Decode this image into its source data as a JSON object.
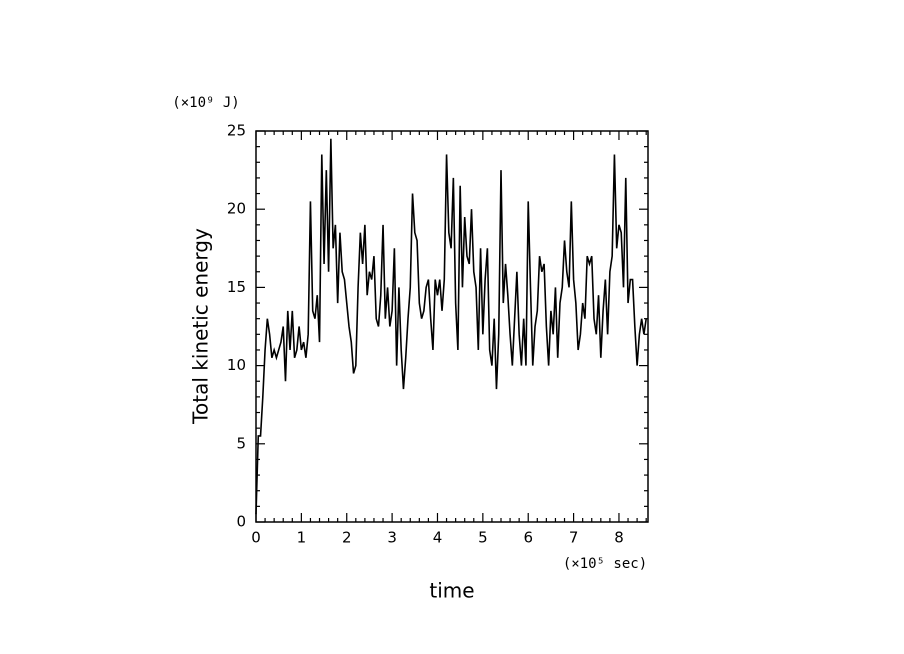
{
  "chart_data": {
    "type": "line",
    "xlabel": "time",
    "ylabel": "Total kinetic energy",
    "x_unit": "(×10⁵ sec)",
    "y_unit": "(×10⁹ J)",
    "color": "#000000",
    "xlim": [
      0,
      8.64
    ],
    "ylim": [
      0,
      25
    ],
    "xticks": [
      0,
      1,
      2,
      3,
      4,
      5,
      6,
      7,
      8
    ],
    "yticks": [
      0,
      5,
      10,
      15,
      20,
      25
    ],
    "xminorticks": [
      0.2,
      0.4,
      0.6,
      0.8,
      1.2,
      1.4,
      1.6,
      1.8,
      2.2,
      2.4,
      2.6,
      2.8,
      3.2,
      3.4,
      3.6,
      3.8,
      4.2,
      4.4,
      4.6,
      4.8,
      5.2,
      5.4,
      5.6,
      5.8,
      6.2,
      6.4,
      6.6,
      6.8,
      7.2,
      7.4,
      7.6,
      7.8,
      8.2,
      8.4,
      8.6
    ],
    "yminorticks": [
      1,
      2,
      3,
      4,
      6,
      7,
      8,
      9,
      11,
      12,
      13,
      14,
      16,
      17,
      18,
      19,
      21,
      22,
      23,
      24
    ],
    "x": [
      0,
      0.05,
      0.1,
      0.15,
      0.2,
      0.25,
      0.3,
      0.35,
      0.4,
      0.45,
      0.5,
      0.55,
      0.6,
      0.65,
      0.7,
      0.75,
      0.8,
      0.85,
      0.9,
      0.95,
      1,
      1.05,
      1.1,
      1.15,
      1.2,
      1.25,
      1.3,
      1.35,
      1.4,
      1.45,
      1.5,
      1.55,
      1.6,
      1.65,
      1.7,
      1.75,
      1.8,
      1.85,
      1.9,
      1.95,
      2,
      2.05,
      2.1,
      2.15,
      2.2,
      2.25,
      2.3,
      2.35,
      2.4,
      2.45,
      2.5,
      2.55,
      2.6,
      2.65,
      2.7,
      2.75,
      2.8,
      2.85,
      2.9,
      2.95,
      3,
      3.05,
      3.1,
      3.15,
      3.2,
      3.25,
      3.3,
      3.35,
      3.4,
      3.45,
      3.5,
      3.55,
      3.6,
      3.65,
      3.7,
      3.75,
      3.8,
      3.85,
      3.9,
      3.95,
      4,
      4.05,
      4.1,
      4.15,
      4.2,
      4.25,
      4.3,
      4.35,
      4.4,
      4.45,
      4.5,
      4.55,
      4.6,
      4.65,
      4.7,
      4.75,
      4.8,
      4.85,
      4.9,
      4.95,
      5,
      5.05,
      5.1,
      5.15,
      5.2,
      5.25,
      5.3,
      5.35,
      5.4,
      5.45,
      5.5,
      5.55,
      5.6,
      5.65,
      5.7,
      5.75,
      5.8,
      5.85,
      5.9,
      5.95,
      6,
      6.05,
      6.1,
      6.15,
      6.2,
      6.25,
      6.3,
      6.35,
      6.4,
      6.45,
      6.5,
      6.55,
      6.6,
      6.65,
      6.7,
      6.75,
      6.8,
      6.85,
      6.9,
      6.95,
      7,
      7.05,
      7.1,
      7.15,
      7.2,
      7.25,
      7.3,
      7.35,
      7.4,
      7.45,
      7.5,
      7.55,
      7.6,
      7.65,
      7.7,
      7.75,
      7.8,
      7.85,
      7.9,
      7.95,
      8,
      8.05,
      8.1,
      8.15,
      8.2,
      8.25,
      8.3,
      8.35,
      8.4,
      8.45,
      8.5,
      8.55,
      8.6
    ],
    "values": [
      0.5,
      5.5,
      5.5,
      8,
      11,
      13,
      12,
      10.5,
      11,
      10.5,
      11,
      11.5,
      12.5,
      9,
      13.5,
      11,
      13.5,
      10.5,
      11,
      12.5,
      11,
      11.5,
      10.5,
      12,
      20.5,
      13.5,
      13,
      14.5,
      11.5,
      23.5,
      16.5,
      22.5,
      16,
      24.5,
      17.5,
      19,
      14,
      18.5,
      16,
      15.5,
      14,
      12.5,
      11.5,
      9.5,
      10,
      15,
      18.5,
      16.5,
      19,
      14.5,
      16,
      15.5,
      17,
      13,
      12.5,
      14.5,
      19,
      13,
      15,
      12.5,
      13.5,
      17.5,
      10,
      15,
      11,
      8.5,
      10.5,
      13,
      15,
      21,
      18.5,
      18,
      14,
      13,
      13.5,
      15,
      15.5,
      13,
      11,
      15.5,
      14.5,
      15.5,
      13.5,
      15.5,
      23.5,
      18.5,
      17.5,
      22,
      14,
      11,
      21.5,
      15,
      19.5,
      17,
      16.5,
      20,
      16,
      15,
      11,
      17.5,
      12,
      15.5,
      17.5,
      11,
      10,
      13,
      8.5,
      12,
      22.5,
      14,
      16.5,
      14.5,
      12,
      10,
      13,
      16,
      12,
      10,
      13,
      10,
      20.5,
      15,
      10,
      12.5,
      13.5,
      17,
      16,
      16.5,
      12.5,
      10,
      13.5,
      12,
      15,
      10.5,
      14,
      15,
      18,
      16,
      15,
      20.5,
      15.5,
      14,
      11,
      12,
      14,
      13,
      17,
      16.5,
      17,
      13,
      12,
      14.5,
      10.5,
      13.5,
      15.5,
      12,
      16,
      17,
      23.5,
      17.5,
      19,
      18.5,
      15,
      22,
      14,
      15.5,
      15.5,
      12.5,
      10,
      12,
      13,
      12,
      13
    ]
  }
}
